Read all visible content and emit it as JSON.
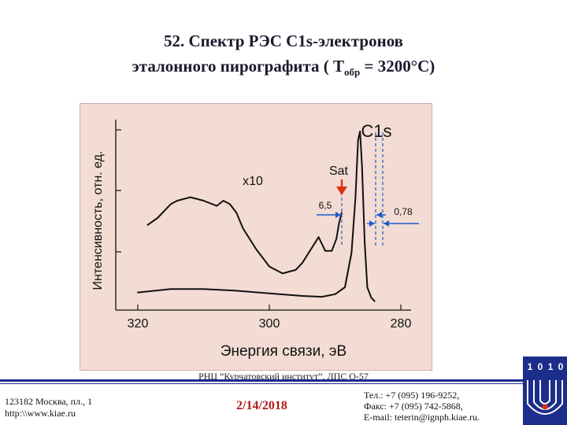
{
  "slide": {
    "title_line1": "52. Спектр РЭС С1s-электронов",
    "title_line2_pre": "эталонного пирографита ( Т",
    "title_line2_sub": "обр",
    "title_line2_post": " = 3200°С)"
  },
  "footer": {
    "org": "РНЦ “Курчатовский институт”, ЛПС О-57",
    "address_line1": "123182 Москва, пл., 1",
    "address_line2": "http:\\\\www.kiae.ru",
    "date": "2/14/2018",
    "phone": "Тел.:   +7 (095) 196-9252,",
    "fax": "Факс:  +7 (095) 742-5868,",
    "email": "E-mail: teterin@ignph.kiae.ru."
  },
  "logo": {
    "letters": [
      "1",
      "0",
      "1",
      "0"
    ]
  },
  "colors": {
    "chart_bg": "#f2dcd3",
    "curve": "#111111",
    "marker_blue": "#1e5ccc",
    "arrow_red": "#e03010",
    "title": "#1a1a2e",
    "date": "#b01818"
  },
  "chart_data": {
    "type": "line",
    "xlabel": "Энергия связи, эВ",
    "ylabel": "Интенсивность, отн. ед.",
    "xlim": [
      320,
      280
    ],
    "xticks": [
      320,
      300,
      280
    ],
    "tick_labels": [
      "320",
      "300",
      "280"
    ],
    "x_reversed": true,
    "grid": false,
    "series": [
      {
        "name": "",
        "values": [
          [
            320,
            0.07
          ],
          [
            315,
            0.09
          ],
          [
            310,
            0.09
          ],
          [
            305,
            0.08
          ],
          [
            300,
            0.065
          ],
          [
            295,
            0.05
          ],
          [
            292,
            0.045
          ],
          [
            290,
            0.06
          ],
          [
            288.5,
            0.1
          ],
          [
            287.5,
            0.3
          ],
          [
            286.9,
            0.62
          ],
          [
            286.5,
            0.95
          ],
          [
            286.2,
            1.0
          ],
          [
            285.9,
            0.8
          ],
          [
            285.5,
            0.36
          ],
          [
            285.1,
            0.1
          ],
          [
            284.5,
            0.04
          ],
          [
            284,
            0.02
          ]
        ]
      },
      {
        "name": "x10",
        "values": [
          [
            318.5,
            0.46
          ],
          [
            317,
            0.5
          ],
          [
            315,
            0.58
          ],
          [
            314,
            0.6
          ],
          [
            312,
            0.62
          ],
          [
            310,
            0.6
          ],
          [
            308,
            0.57
          ],
          [
            307,
            0.6
          ],
          [
            306,
            0.58
          ],
          [
            305,
            0.53
          ],
          [
            304,
            0.44
          ],
          [
            303,
            0.38
          ],
          [
            302,
            0.32
          ],
          [
            300,
            0.22
          ],
          [
            298,
            0.18
          ],
          [
            296,
            0.2
          ],
          [
            295,
            0.24
          ],
          [
            294,
            0.3
          ],
          [
            293,
            0.36
          ],
          [
            292.5,
            0.39
          ],
          [
            292,
            0.35
          ],
          [
            291.5,
            0.31
          ],
          [
            290.5,
            0.31
          ],
          [
            289.8,
            0.38
          ],
          [
            289.4,
            0.47
          ],
          [
            289,
            0.53
          ]
        ]
      }
    ],
    "annotations": {
      "peak_label": "C1s",
      "mult_label": "x10",
      "sat_label": "Sat",
      "sat_value": "6,5",
      "fwhm_value": "0,78"
    }
  }
}
